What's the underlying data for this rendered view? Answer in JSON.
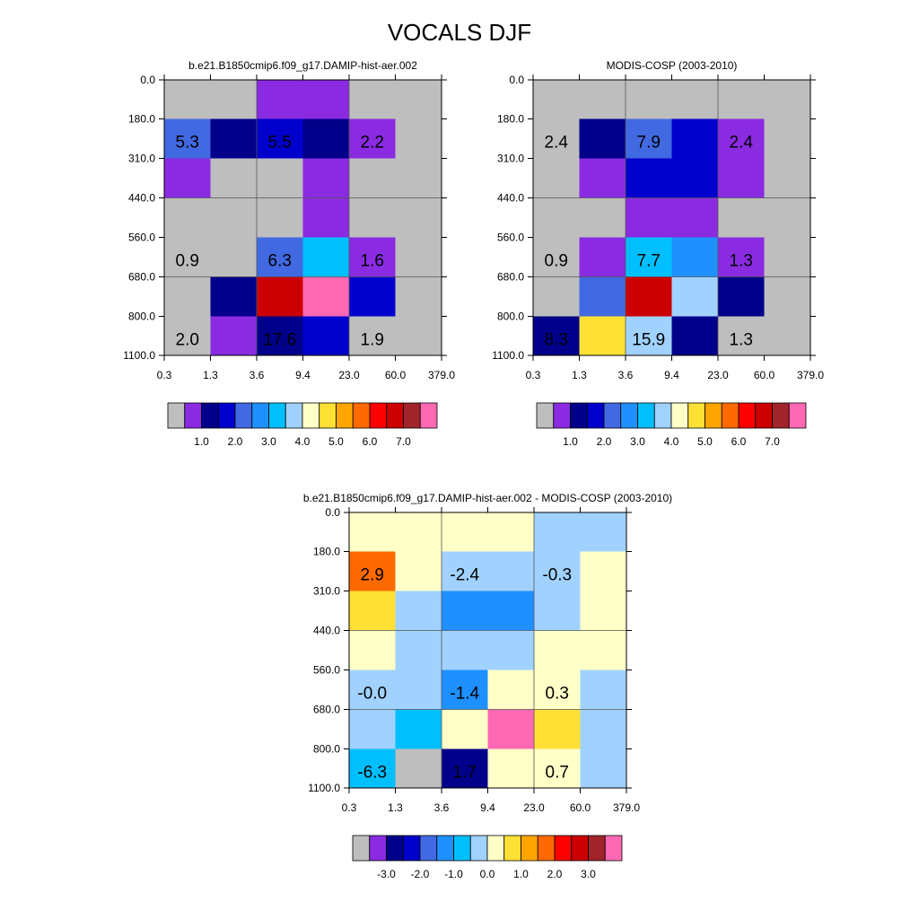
{
  "title": "VOCALS DJF",
  "palette": {
    "gray": "#bebebe",
    "colors": [
      "#bebebe",
      "#8a2be2",
      "#00008b",
      "#0000cd",
      "#4169e1",
      "#1e90ff",
      "#00bfff",
      "#a1d2ff",
      "#ffffc8",
      "#ffe135",
      "#ffa500",
      "#ff6a00",
      "#ff0000",
      "#cc0000",
      "#a0242a",
      "#ff69b4"
    ]
  },
  "chart_data": [
    {
      "type": "heatmap",
      "subtitle": "b.e21.B1850cmip6.f09_g17.DAMIP-hist-aer.002",
      "x_ticks": [
        "0.3",
        "1.3",
        "3.6",
        "9.4",
        "23.0",
        "60.0",
        "379.0"
      ],
      "y_ticks": [
        "0.0",
        "180.0",
        "310.0",
        "440.0",
        "560.0",
        "680.0",
        "800.0",
        "1100.0"
      ],
      "cells": [
        [
          0,
          0,
          1,
          1,
          0,
          0
        ],
        [
          4,
          2,
          3,
          2,
          1,
          0
        ],
        [
          1,
          0,
          0,
          1,
          0,
          0
        ],
        [
          0,
          0,
          0,
          1,
          0,
          0
        ],
        [
          0,
          0,
          4,
          6,
          1,
          0
        ],
        [
          0,
          2,
          13,
          15,
          3,
          0
        ],
        [
          0,
          1,
          2,
          3,
          0,
          0
        ]
      ],
      "annotations": [
        {
          "row": 1,
          "col": 0,
          "text": "5.3"
        },
        {
          "row": 1,
          "col": 2,
          "text": "5.5"
        },
        {
          "row": 1,
          "col": 4,
          "text": "2.2"
        },
        {
          "row": 4,
          "col": 0,
          "text": "0.9"
        },
        {
          "row": 4,
          "col": 2,
          "text": "6.3"
        },
        {
          "row": 4,
          "col": 4,
          "text": "1.6"
        },
        {
          "row": 6,
          "col": 0,
          "text": "2.0"
        },
        {
          "row": 6,
          "col": 2,
          "text": "17.6"
        },
        {
          "row": 6,
          "col": 4,
          "text": "1.9"
        }
      ],
      "colorbar_labels": [
        "1.0",
        "2.0",
        "3.0",
        "4.0",
        "5.0",
        "6.0",
        "7.0"
      ]
    },
    {
      "type": "heatmap",
      "subtitle": "MODIS-COSP (2003-2010)",
      "x_ticks": [
        "0.3",
        "1.3",
        "3.6",
        "9.4",
        "23.0",
        "60.0",
        "379.0"
      ],
      "y_ticks": [
        "0.0",
        "180.0",
        "310.0",
        "440.0",
        "560.0",
        "680.0",
        "800.0",
        "1100.0"
      ],
      "cells": [
        [
          0,
          0,
          0,
          0,
          0,
          0
        ],
        [
          0,
          2,
          4,
          3,
          1,
          0
        ],
        [
          0,
          1,
          3,
          3,
          1,
          0
        ],
        [
          0,
          0,
          1,
          1,
          0,
          0
        ],
        [
          0,
          1,
          6,
          5,
          1,
          0
        ],
        [
          0,
          4,
          13,
          7,
          2,
          0
        ],
        [
          2,
          9,
          7,
          2,
          0,
          0
        ]
      ],
      "annotations": [
        {
          "row": 1,
          "col": 0,
          "text": "2.4"
        },
        {
          "row": 1,
          "col": 2,
          "text": "7.9"
        },
        {
          "row": 1,
          "col": 4,
          "text": "2.4"
        },
        {
          "row": 4,
          "col": 0,
          "text": "0.9"
        },
        {
          "row": 4,
          "col": 2,
          "text": "7.7"
        },
        {
          "row": 4,
          "col": 4,
          "text": "1.3"
        },
        {
          "row": 6,
          "col": 0,
          "text": "8.3"
        },
        {
          "row": 6,
          "col": 2,
          "text": "15.9"
        },
        {
          "row": 6,
          "col": 4,
          "text": "1.3"
        }
      ],
      "colorbar_labels": [
        "1.0",
        "2.0",
        "3.0",
        "4.0",
        "5.0",
        "6.0",
        "7.0"
      ]
    },
    {
      "type": "heatmap",
      "subtitle": "b.e21.B1850cmip6.f09_g17.DAMIP-hist-aer.002 - MODIS-COSP (2003-2010)",
      "x_ticks": [
        "0.3",
        "1.3",
        "3.6",
        "9.4",
        "23.0",
        "60.0",
        "379.0"
      ],
      "y_ticks": [
        "0.0",
        "180.0",
        "310.0",
        "440.0",
        "560.0",
        "680.0",
        "800.0",
        "1100.0"
      ],
      "cells": [
        [
          8,
          8,
          8,
          8,
          7,
          7
        ],
        [
          11,
          8,
          7,
          7,
          7,
          8
        ],
        [
          9,
          7,
          5,
          5,
          7,
          8
        ],
        [
          8,
          7,
          7,
          7,
          8,
          8
        ],
        [
          7,
          7,
          5,
          8,
          8,
          7
        ],
        [
          7,
          6,
          8,
          15,
          9,
          7
        ],
        [
          6,
          0,
          2,
          8,
          8,
          7
        ]
      ],
      "annotations": [
        {
          "row": 1,
          "col": 0,
          "text": "2.9"
        },
        {
          "row": 1,
          "col": 2,
          "text": "-2.4"
        },
        {
          "row": 1,
          "col": 4,
          "text": "-0.3"
        },
        {
          "row": 4,
          "col": 0,
          "text": "-0.0"
        },
        {
          "row": 4,
          "col": 2,
          "text": "-1.4"
        },
        {
          "row": 4,
          "col": 4,
          "text": "0.3"
        },
        {
          "row": 6,
          "col": 0,
          "text": "-6.3"
        },
        {
          "row": 6,
          "col": 2,
          "text": "1.7"
        },
        {
          "row": 6,
          "col": 4,
          "text": "0.7"
        }
      ],
      "colorbar_labels": [
        "-3.0",
        "-2.0",
        "-1.0",
        "0.0",
        "1.0",
        "2.0",
        "3.0"
      ]
    }
  ]
}
